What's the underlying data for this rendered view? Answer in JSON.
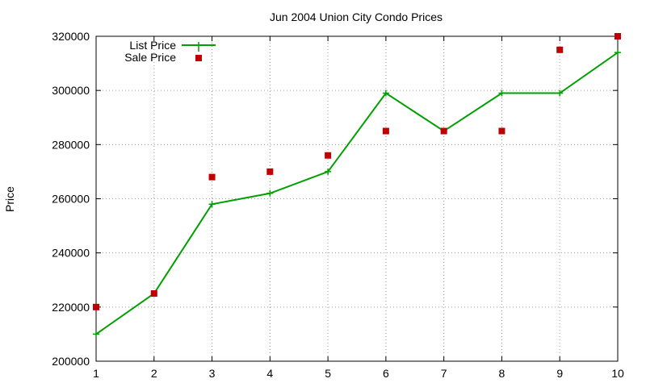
{
  "chart_data": {
    "type": "line",
    "title": "Jun 2004 Union City Condo Prices",
    "xlabel": "",
    "ylabel": "Price",
    "xlim": [
      1,
      10
    ],
    "ylim": [
      200000,
      320000
    ],
    "x_ticks": [
      "1",
      "2",
      "3",
      "4",
      "5",
      "6",
      "7",
      "8",
      "9",
      "10"
    ],
    "y_ticks": [
      "200000",
      "220000",
      "240000",
      "260000",
      "280000",
      "300000",
      "320000"
    ],
    "grid": true,
    "legend_position": "top-left",
    "series": [
      {
        "name": "List Price",
        "style": "linespoints",
        "color": "#00a000",
        "marker": "plus",
        "x": [
          1,
          2,
          3,
          4,
          5,
          6,
          7,
          8,
          9,
          10
        ],
        "y": [
          210000,
          225000,
          258000,
          262000,
          270000,
          299000,
          285000,
          299000,
          299000,
          314000
        ]
      },
      {
        "name": "Sale Price",
        "style": "points",
        "color": "#c00000",
        "marker": "square",
        "x": [
          1,
          2,
          3,
          4,
          5,
          6,
          7,
          8,
          9,
          10
        ],
        "y": [
          220000,
          225000,
          268000,
          270000,
          276000,
          285000,
          285000,
          285000,
          315000,
          320000
        ]
      }
    ]
  }
}
